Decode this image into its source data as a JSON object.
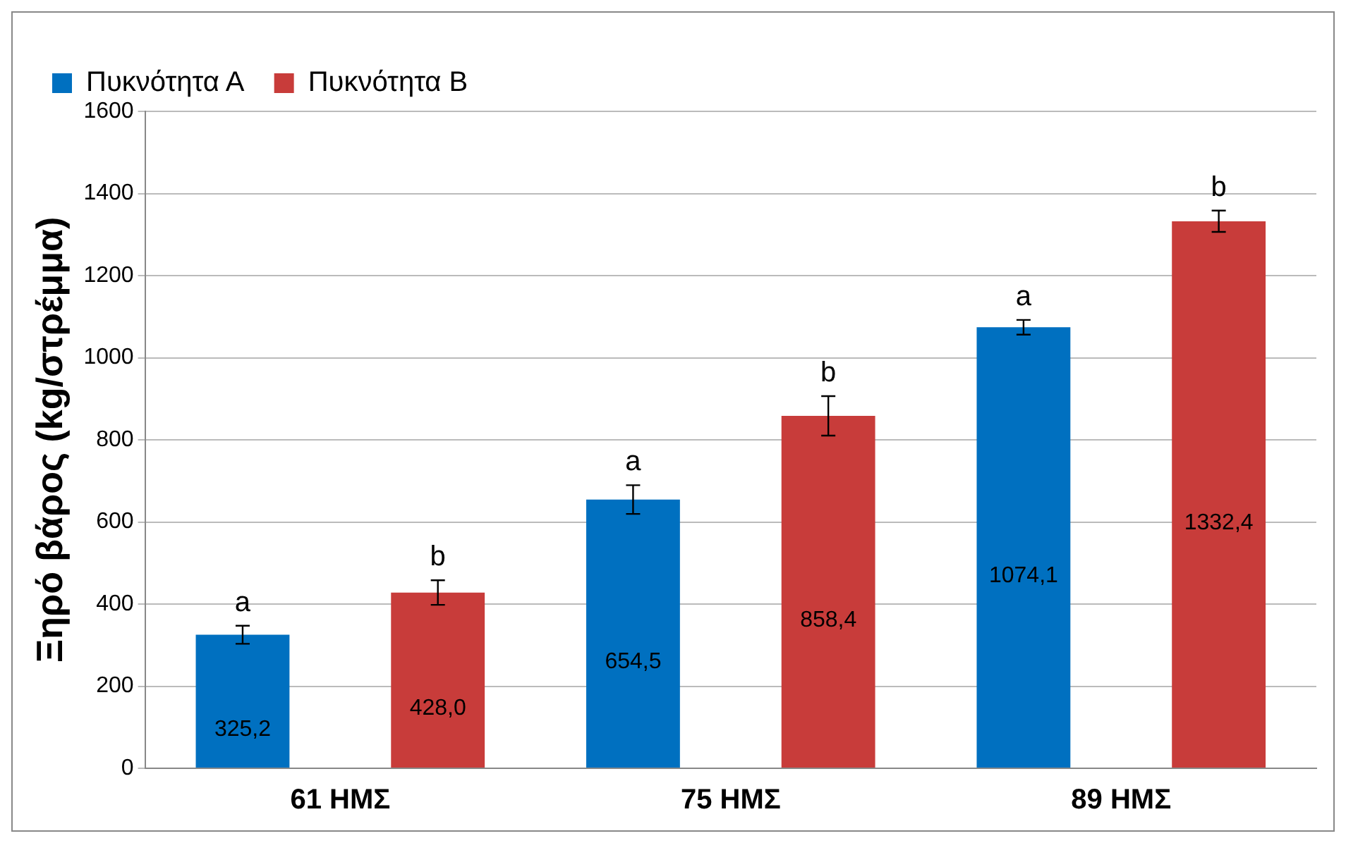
{
  "chart_data": {
    "type": "bar",
    "ylabel": "Ξηρό βάρος (kg/στρέμμα)",
    "categories": [
      "61 ΗΜΣ",
      "75 ΗΜΣ",
      "89 ΗΜΣ"
    ],
    "series": [
      {
        "name": "Πυκνότητα Α",
        "color": "#0070c0",
        "values": [
          325.2,
          654.5,
          1074.1
        ],
        "errors": [
          22,
          35,
          18
        ],
        "value_labels": [
          "325,2",
          "654,5",
          "1074,1"
        ]
      },
      {
        "name": "Πυκνότητα Β",
        "color": "#c83c3a",
        "values": [
          428.0,
          858.4,
          1332.4
        ],
        "errors": [
          30,
          48,
          26
        ],
        "value_labels": [
          "428,0",
          "858,4",
          "1332,4"
        ]
      }
    ],
    "annotations": [
      "a",
      "b",
      "a",
      "b",
      "a",
      "b"
    ],
    "ylim": [
      0,
      1600
    ],
    "yticks": [
      0,
      200,
      400,
      600,
      800,
      1000,
      1200,
      1400,
      1600
    ],
    "grid": "y",
    "legend": "top left"
  }
}
